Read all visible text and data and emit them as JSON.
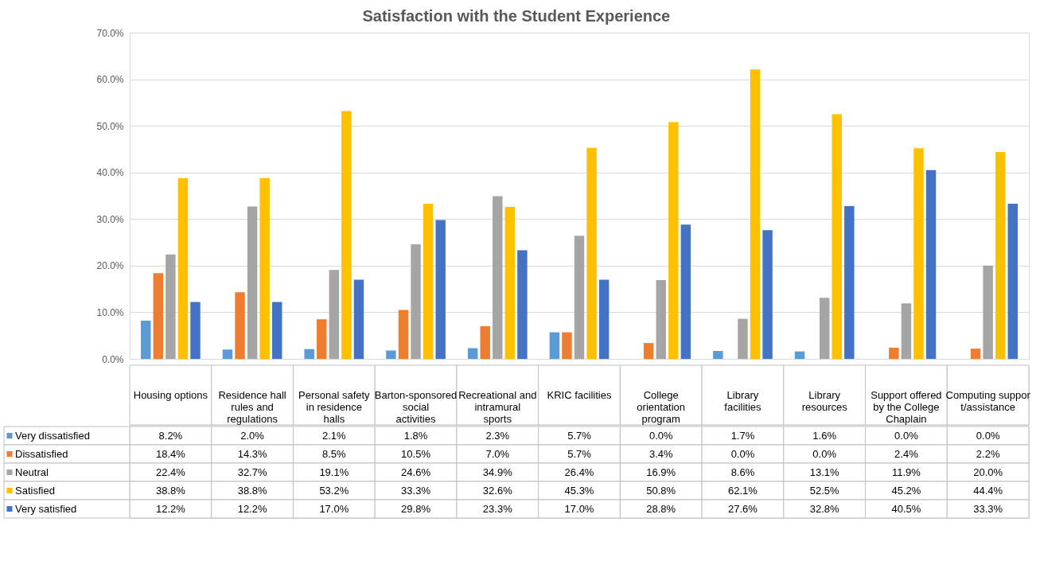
{
  "chart_data": {
    "type": "bar",
    "title": "Satisfaction with the Student Experience",
    "categories": [
      "Housing options",
      "Residence hall rules and regulations",
      "Personal safety in residence halls",
      "Barton-sponsored social activities",
      "Recreational and intramural sports",
      "KRIC facilities",
      "College orientation program",
      "Library facilities",
      "Library resources",
      "Support offered by the College Chaplain",
      "Computing support/assistance"
    ],
    "series": [
      {
        "name": "Very dissatisfied",
        "color": "#5b9bd5",
        "values": [
          8.2,
          2.0,
          2.1,
          1.8,
          2.3,
          5.7,
          0.0,
          1.7,
          1.6,
          0.0,
          0.0
        ],
        "value_labels": [
          "8.2%",
          "2.0%",
          "2.1%",
          "1.8%",
          "2.3%",
          "5.7%",
          "0.0%",
          "1.7%",
          "1.6%",
          "0.0%",
          "0.0%"
        ]
      },
      {
        "name": "Dissatisfied",
        "color": "#ed7d31",
        "values": [
          18.4,
          14.3,
          8.5,
          10.5,
          7.0,
          5.7,
          3.4,
          0.0,
          0.0,
          2.4,
          2.2
        ],
        "value_labels": [
          "18.4%",
          "14.3%",
          "8.5%",
          "10.5%",
          "7.0%",
          "5.7%",
          "3.4%",
          "0.0%",
          "0.0%",
          "2.4%",
          "2.2%"
        ]
      },
      {
        "name": "Neutral",
        "color": "#a5a5a5",
        "values": [
          22.4,
          32.7,
          19.1,
          24.6,
          34.9,
          26.4,
          16.9,
          8.6,
          13.1,
          11.9,
          20.0
        ],
        "value_labels": [
          "22.4%",
          "32.7%",
          "19.1%",
          "24.6%",
          "34.9%",
          "26.4%",
          "16.9%",
          "8.6%",
          "13.1%",
          "11.9%",
          "20.0%"
        ]
      },
      {
        "name": "Satisfied",
        "color": "#ffc000",
        "values": [
          38.8,
          38.8,
          53.2,
          33.3,
          32.6,
          45.3,
          50.8,
          62.1,
          52.5,
          45.2,
          44.4
        ],
        "value_labels": [
          "38.8%",
          "38.8%",
          "53.2%",
          "33.3%",
          "32.6%",
          "45.3%",
          "50.8%",
          "62.1%",
          "52.5%",
          "45.2%",
          "44.4%"
        ]
      },
      {
        "name": "Very satisfied",
        "color": "#4472c4",
        "values": [
          12.2,
          12.2,
          17.0,
          29.8,
          23.3,
          17.0,
          28.8,
          27.6,
          32.8,
          40.5,
          33.3
        ],
        "value_labels": [
          "12.2%",
          "12.2%",
          "17.0%",
          "29.8%",
          "23.3%",
          "17.0%",
          "28.8%",
          "27.6%",
          "32.8%",
          "40.5%",
          "33.3%"
        ]
      }
    ],
    "ylim": [
      0,
      70
    ],
    "yticks": [
      {
        "value": 0,
        "label": "0.0%"
      },
      {
        "value": 10,
        "label": "10.0%"
      },
      {
        "value": 20,
        "label": "20.0%"
      },
      {
        "value": 30,
        "label": "30.0%"
      },
      {
        "value": 40,
        "label": "40.0%"
      },
      {
        "value": 50,
        "label": "50.0%"
      },
      {
        "value": 60,
        "label": "60.0%"
      },
      {
        "value": 70,
        "label": "70.0%"
      }
    ],
    "grid": "y",
    "legend": "bottom"
  }
}
